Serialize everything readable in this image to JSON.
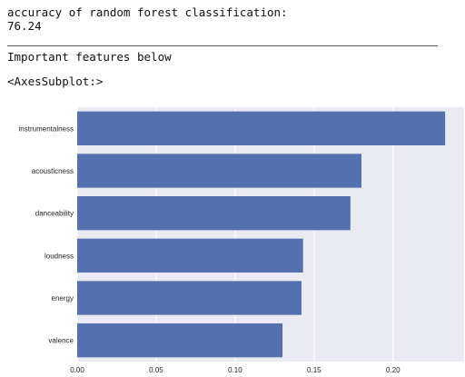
{
  "output": {
    "accuracy_label": "accuracy of random forest classification:",
    "accuracy_value": "76.24",
    "features_heading": "Important features below",
    "axes_repr": "<AxesSubplot:>"
  },
  "chart_data": {
    "type": "bar",
    "orientation": "horizontal",
    "categories": [
      "instrumentalness",
      "acousticness",
      "danceability",
      "loudness",
      "energy",
      "valence"
    ],
    "values": [
      0.233,
      0.18,
      0.173,
      0.143,
      0.142,
      0.13
    ],
    "xlim": [
      0.0,
      0.245
    ],
    "xticks": [
      "0.00",
      "0.05",
      "0.10",
      "0.15",
      "0.20"
    ],
    "grid": true,
    "colors": {
      "bar": "#5470ae",
      "background": "#eaeaf2",
      "grid": "#ffffff"
    }
  }
}
